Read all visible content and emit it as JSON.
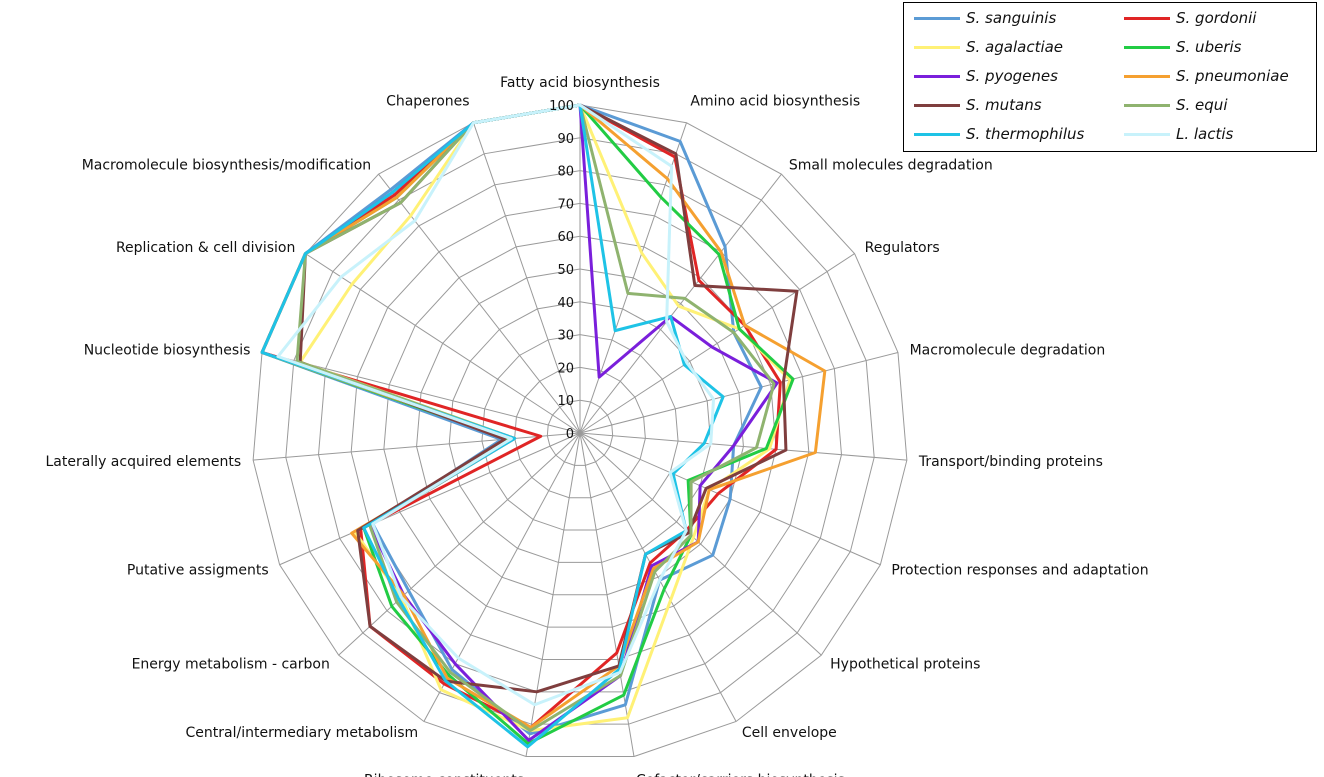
{
  "chart_data": {
    "type": "radar",
    "axes": [
      "Fatty acid biosynthesis",
      "Amino acid biosynthesis",
      "Small molecules degradation",
      "Regulators",
      "Macromolecule degradation",
      "Transport/binding proteins",
      "Protection responses and adaptation",
      "Hypothetical proteins",
      "Cell envelope",
      "Cofactor/carriers biosynthesis",
      "Ribosome constituents",
      "Central/intermediary metabolism",
      "Energy metabolism - carbon",
      "Putative assigments",
      "Laterally acquired elements",
      "Nucleotide biosynthesis",
      "Replication & cell division",
      "Macromolecule biosynthesis/modification",
      "Chaperones"
    ],
    "rticks": [
      0,
      10,
      20,
      30,
      40,
      50,
      60,
      70,
      80,
      90,
      100
    ],
    "rlim": [
      0,
      100
    ],
    "legend_position": "top-right",
    "series": [
      {
        "name": "S. sanguinis",
        "color": "#5b9bd5",
        "values": [
          100,
          94,
          72,
          56,
          57,
          47,
          50,
          55,
          51,
          84,
          93,
          82,
          71,
          69,
          24,
          100,
          100,
          94,
          100
        ]
      },
      {
        "name": "S. gordonii",
        "color": "#e02525",
        "values": [
          100,
          89,
          59,
          60,
          63,
          60,
          46,
          44,
          45,
          68,
          91,
          87,
          87,
          73,
          12,
          100,
          100,
          92,
          100
        ]
      },
      {
        "name": "S. agalactiae",
        "color": "#fff176",
        "values": [
          100,
          58,
          49,
          58,
          66,
          58,
          43,
          47,
          58,
          88,
          92,
          89,
          74,
          75,
          20,
          88,
          83,
          84,
          100
        ]
      },
      {
        "name": "S. uberis",
        "color": "#22cc44",
        "values": [
          100,
          76,
          69,
          58,
          67,
          57,
          36,
          46,
          54,
          81,
          96,
          84,
          78,
          72,
          22,
          100,
          100,
          91,
          100
        ]
      },
      {
        "name": "S. pyogenes",
        "color": "#7a1fdb",
        "values": [
          100,
          18,
          45,
          48,
          62,
          47,
          40,
          49,
          46,
          75,
          95,
          80,
          73,
          70,
          20,
          100,
          100,
          93,
          100
        ]
      },
      {
        "name": "S. pneumoniae",
        "color": "#f5a030",
        "values": [
          100,
          82,
          70,
          60,
          77,
          72,
          43,
          49,
          47,
          72,
          91,
          85,
          73,
          76,
          21,
          100,
          100,
          91,
          100
        ]
      },
      {
        "name": "S. mutans",
        "color": "#7f3e3e",
        "values": [
          100,
          90,
          57,
          79,
          64,
          63,
          42,
          45,
          42,
          72,
          80,
          86,
          87,
          74,
          23,
          88,
          100,
          89,
          100
        ]
      },
      {
        "name": "S. equi",
        "color": "#8fb36f",
        "values": [
          100,
          45,
          52,
          56,
          61,
          54,
          37,
          46,
          48,
          75,
          92,
          83,
          76,
          70,
          20,
          89,
          100,
          89,
          100
        ]
      },
      {
        "name": "S. thermophilus",
        "color": "#1ec3e6",
        "values": [
          100,
          33,
          45,
          38,
          45,
          38,
          31,
          44,
          42,
          73,
          97,
          86,
          75,
          72,
          20,
          100,
          100,
          93,
          100
        ]
      },
      {
        "name": "L. lactis",
        "color": "#c8f2fb",
        "values": [
          100,
          86,
          43,
          39,
          42,
          40,
          30,
          44,
          51,
          74,
          84,
          78,
          74,
          69,
          21,
          95,
          87,
          82,
          100
        ]
      }
    ]
  }
}
